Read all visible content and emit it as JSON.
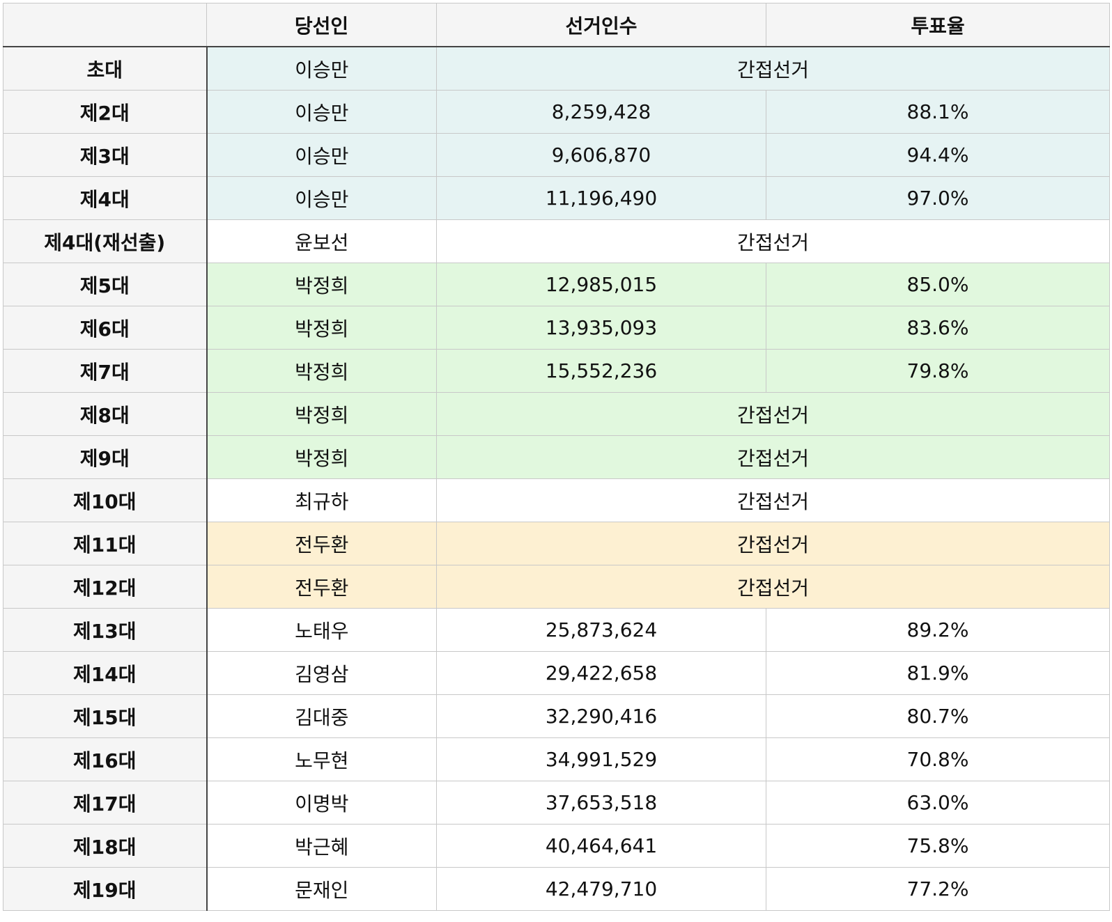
{
  "headers": [
    "",
    "당선인",
    "선거인수",
    "투표율"
  ],
  "colors": {
    "blue": "#e6f3f3",
    "green": "#e1f8de",
    "orange": "#fdf0d2",
    "white": "#ffffff"
  },
  "rows": [
    {
      "term": "초대",
      "winner": "이승만",
      "indirect": "간접선거",
      "tint": "blue"
    },
    {
      "term": "제2대",
      "winner": "이승만",
      "voters": "8,259,428",
      "turnout": "88.1%",
      "tint": "blue"
    },
    {
      "term": "제3대",
      "winner": "이승만",
      "voters": "9,606,870",
      "turnout": "94.4%",
      "tint": "blue"
    },
    {
      "term": "제4대",
      "winner": "이승만",
      "voters": "11,196,490",
      "turnout": "97.0%",
      "tint": "blue"
    },
    {
      "term": "제4대(재선출)",
      "winner": "윤보선",
      "indirect": "간접선거",
      "tint": "white"
    },
    {
      "term": "제5대",
      "winner": "박정희",
      "voters": "12,985,015",
      "turnout": "85.0%",
      "tint": "green"
    },
    {
      "term": "제6대",
      "winner": "박정희",
      "voters": "13,935,093",
      "turnout": "83.6%",
      "tint": "green"
    },
    {
      "term": "제7대",
      "winner": "박정희",
      "voters": "15,552,236",
      "turnout": "79.8%",
      "tint": "green"
    },
    {
      "term": "제8대",
      "winner": "박정희",
      "indirect": "간접선거",
      "tint": "green"
    },
    {
      "term": "제9대",
      "winner": "박정희",
      "indirect": "간접선거",
      "tint": "green"
    },
    {
      "term": "제10대",
      "winner": "최규하",
      "indirect": "간접선거",
      "tint": "white"
    },
    {
      "term": "제11대",
      "winner": "전두환",
      "indirect": "간접선거",
      "tint": "orange"
    },
    {
      "term": "제12대",
      "winner": "전두환",
      "indirect": "간접선거",
      "tint": "orange"
    },
    {
      "term": "제13대",
      "winner": "노태우",
      "voters": "25,873,624",
      "turnout": "89.2%",
      "tint": "white"
    },
    {
      "term": "제14대",
      "winner": "김영삼",
      "voters": "29,422,658",
      "turnout": "81.9%",
      "tint": "white"
    },
    {
      "term": "제15대",
      "winner": "김대중",
      "voters": "32,290,416",
      "turnout": "80.7%",
      "tint": "white"
    },
    {
      "term": "제16대",
      "winner": "노무현",
      "voters": "34,991,529",
      "turnout": "70.8%",
      "tint": "white"
    },
    {
      "term": "제17대",
      "winner": "이명박",
      "voters": "37,653,518",
      "turnout": "63.0%",
      "tint": "white"
    },
    {
      "term": "제18대",
      "winner": "박근혜",
      "voters": "40,464,641",
      "turnout": "75.8%",
      "tint": "white"
    },
    {
      "term": "제19대",
      "winner": "문재인",
      "voters": "42,479,710",
      "turnout": "77.2%",
      "tint": "white"
    }
  ]
}
